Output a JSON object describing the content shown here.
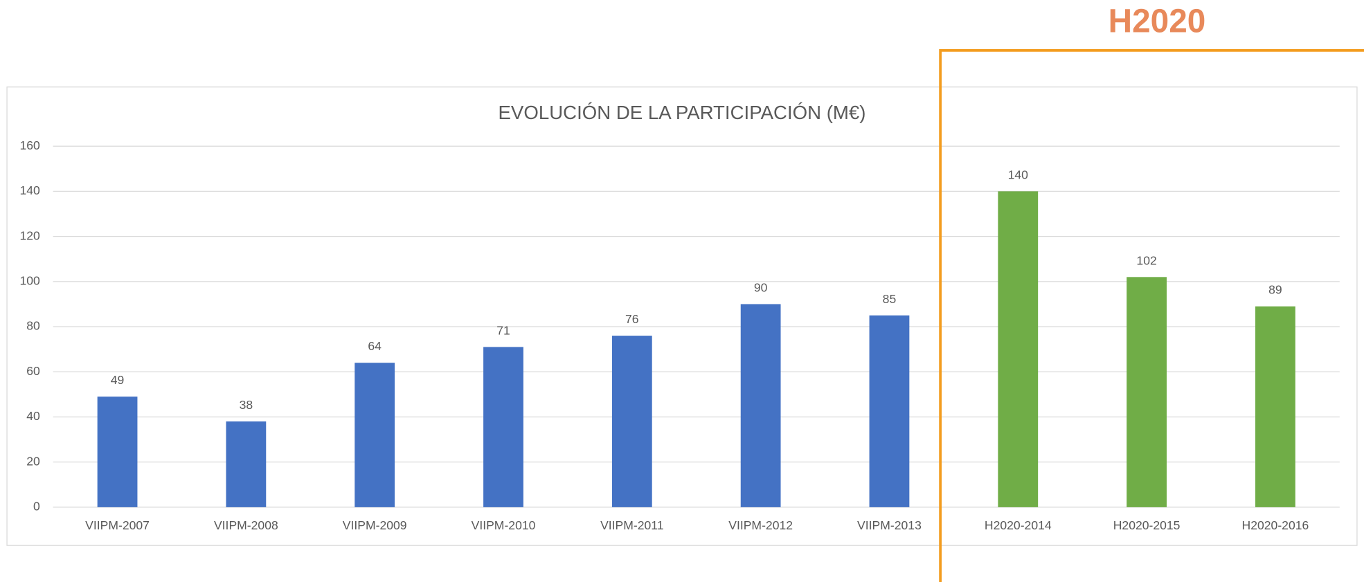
{
  "chart_data": {
    "type": "bar",
    "title": "EVOLUCIÓN DE LA PARTICIPACIÓN (M€)",
    "annotation": "H2020",
    "categories": [
      "VIIPM-2007",
      "VIIPM-2008",
      "VIIPM-2009",
      "VIIPM-2010",
      "VIIPM-2011",
      "VIIPM-2012",
      "VIIPM-2013",
      "H2020-2014",
      "H2020-2015",
      "H2020-2016"
    ],
    "values": [
      49,
      38,
      64,
      71,
      76,
      90,
      85,
      140,
      102,
      89
    ],
    "colors": [
      "#4472c4",
      "#4472c4",
      "#4472c4",
      "#4472c4",
      "#4472c4",
      "#4472c4",
      "#4472c4",
      "#70ad47",
      "#70ad47",
      "#70ad47"
    ],
    "ylim": [
      0,
      160
    ],
    "yticks": [
      0,
      20,
      40,
      60,
      80,
      100,
      120,
      140,
      160
    ],
    "grid": true
  }
}
